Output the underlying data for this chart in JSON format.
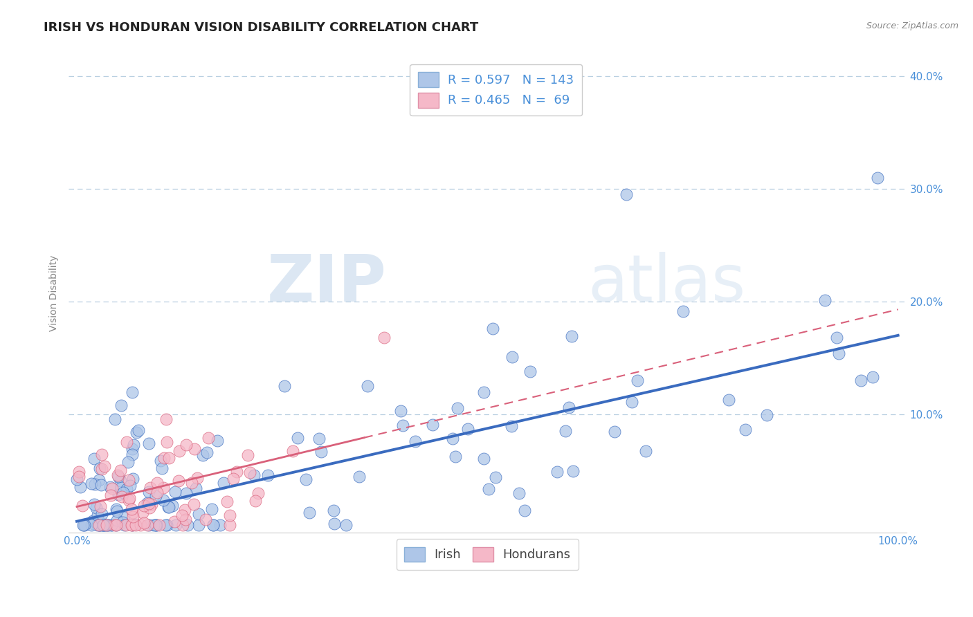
{
  "title": "IRISH VS HONDURAN VISION DISABILITY CORRELATION CHART",
  "source": "Source: ZipAtlas.com",
  "xlabel": "",
  "ylabel": "Vision Disability",
  "xlim": [
    -0.01,
    1.01
  ],
  "ylim": [
    -0.005,
    0.42
  ],
  "xticks": [
    0.0,
    1.0
  ],
  "xticklabels": [
    "0.0%",
    "100.0%"
  ],
  "yticks": [
    0.1,
    0.2,
    0.3,
    0.4
  ],
  "yticklabels": [
    "10.0%",
    "20.0%",
    "30.0%",
    "40.0%"
  ],
  "irish_R": 0.597,
  "irish_N": 143,
  "honduran_R": 0.465,
  "honduran_N": 69,
  "irish_color": "#aec6e8",
  "honduran_color": "#f5b8c8",
  "irish_line_color": "#3a6bbf",
  "honduran_line_color": "#d9607a",
  "legend_label_color": "#4a90d9",
  "watermark_zip": "ZIP",
  "watermark_atlas": "atlas",
  "background_color": "#ffffff",
  "grid_color": "#b8cfe0",
  "title_fontsize": 13,
  "axis_label_fontsize": 10,
  "tick_fontsize": 11,
  "irish_line_slope": 0.165,
  "irish_line_intercept": 0.005,
  "honduran_line_slope": 0.175,
  "honduran_line_intercept": 0.018
}
